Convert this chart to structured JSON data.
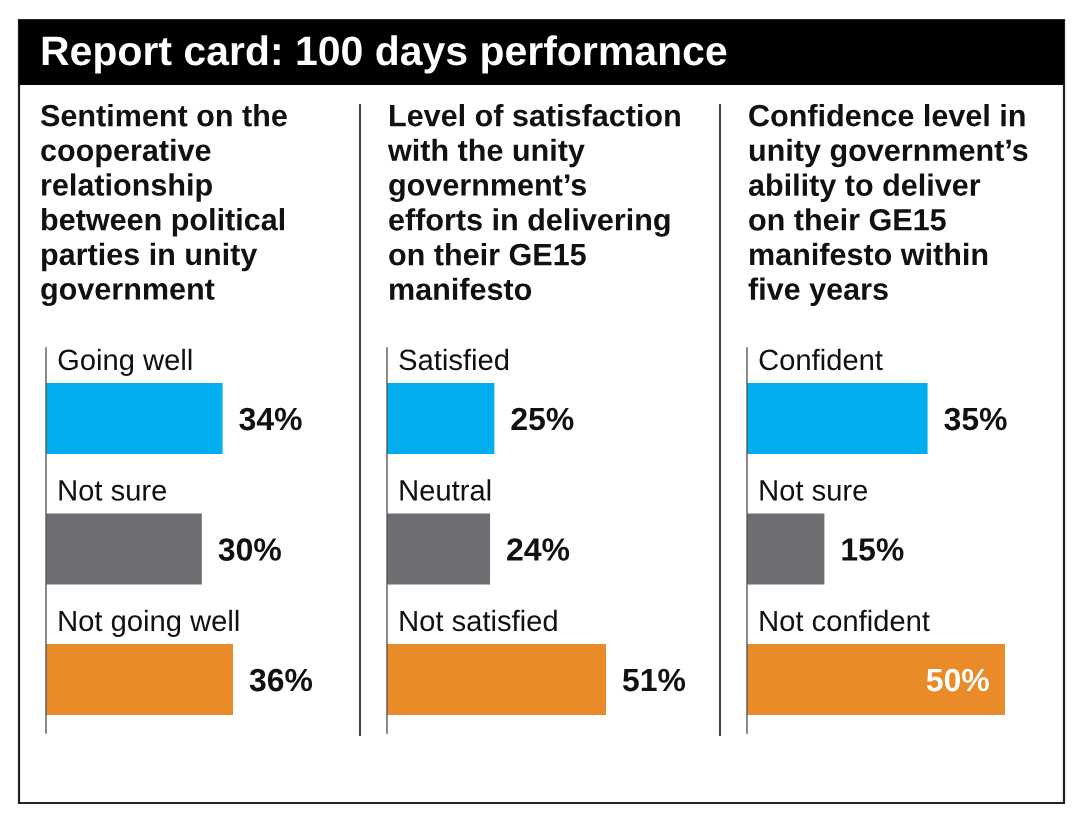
{
  "chart_data": [
    {
      "type": "bar",
      "orientation": "horizontal",
      "title": "Report card: 100 days performance",
      "subtitle": "Sentiment on the\ncooperative\nrelationship\nbetween political\nparties in unity\ngovernment",
      "categories": [
        "Going well",
        "Not sure",
        "Not going well"
      ],
      "values": [
        34,
        30,
        36
      ],
      "colors": [
        "#00aeef",
        "#6d6e71",
        "#e98b28"
      ],
      "value_labels": [
        "34%",
        "30%",
        "36%"
      ],
      "tick_labels": "y"
    },
    {
      "type": "bar",
      "orientation": "horizontal",
      "subtitle": "Level of satisfaction\nwith the unity\ngovernment’s\nefforts in delivering\non their GE15\nmanifesto",
      "categories": [
        "Satisfied",
        "Neutral",
        "Not satisfied"
      ],
      "values": [
        25,
        24,
        51
      ],
      "colors": [
        "#00aeef",
        "#6d6e71",
        "#e98b28"
      ],
      "value_labels": [
        "25%",
        "24%",
        "51%"
      ],
      "tick_labels": "y"
    },
    {
      "type": "bar",
      "orientation": "horizontal",
      "subtitle": "Confidence level in\nunity government’s\nability to deliver\non their GE15\nmanifesto within\nfive years",
      "categories": [
        "Confident",
        "Not sure",
        "Not confident"
      ],
      "values": [
        35,
        15,
        50
      ],
      "colors": [
        "#00aeef",
        "#6d6e71",
        "#e98b28"
      ],
      "value_labels": [
        "35%",
        "15%",
        "50%"
      ],
      "tick_labels": "y"
    }
  ]
}
